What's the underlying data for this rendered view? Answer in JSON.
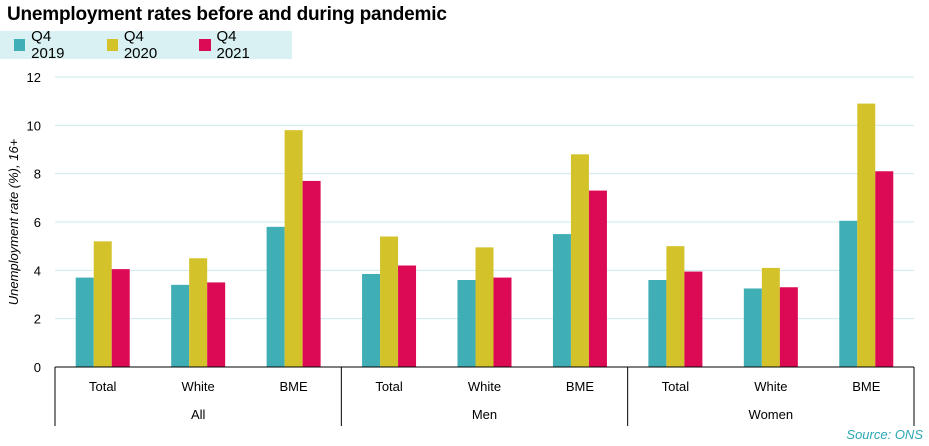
{
  "title": "Unemployment rates before and during pandemic",
  "source": "Source: ONS",
  "chart_data": {
    "type": "bar",
    "title": "Unemployment rates before and during pandemic",
    "ylabel": "Unemployment  rate (%), 16+",
    "xlabel": "",
    "ylim": [
      0,
      12
    ],
    "yticks": [
      0,
      2,
      4,
      6,
      8,
      10,
      12
    ],
    "grid": true,
    "legend_position": "top-left",
    "groups": [
      {
        "label": "All",
        "categories": [
          "Total",
          "White",
          "BME"
        ]
      },
      {
        "label": "Men",
        "categories": [
          "Total",
          "White",
          "BME"
        ]
      },
      {
        "label": "Women",
        "categories": [
          "Total",
          "White",
          "BME"
        ]
      }
    ],
    "series": [
      {
        "name": "Q4 2019",
        "color": "#40aeb5",
        "values": [
          3.7,
          3.4,
          5.8,
          3.85,
          3.6,
          5.5,
          3.6,
          3.25,
          6.05
        ]
      },
      {
        "name": "Q4 2020",
        "color": "#d4c22b",
        "values": [
          5.2,
          4.5,
          9.8,
          5.4,
          4.95,
          8.8,
          5.0,
          4.1,
          10.9
        ]
      },
      {
        "name": "Q4 2021",
        "color": "#dc0a55",
        "values": [
          4.05,
          3.5,
          7.7,
          4.2,
          3.7,
          7.3,
          3.95,
          3.3,
          8.1
        ]
      }
    ]
  }
}
